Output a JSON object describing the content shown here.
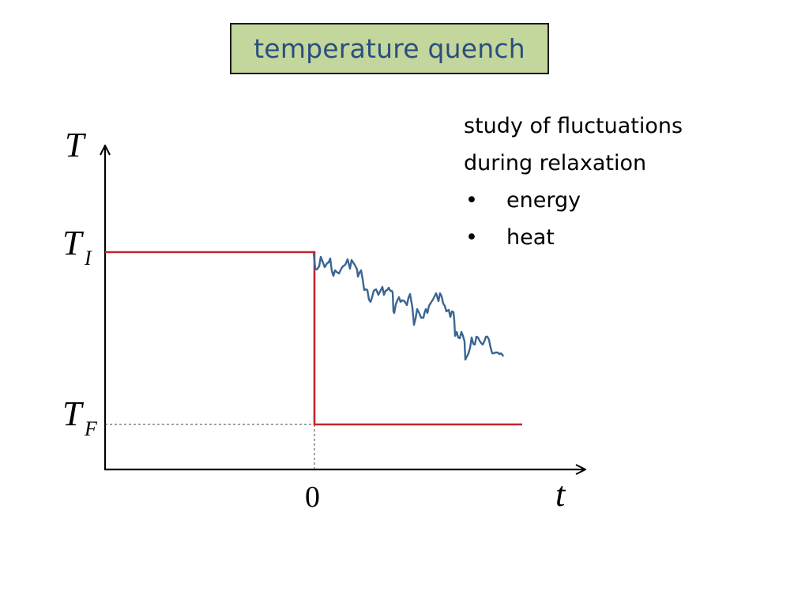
{
  "title": "temperature quench",
  "notes": {
    "line1": "study of fluctuations",
    "line2": "during relaxation",
    "bullets": [
      "energy",
      "heat"
    ],
    "bullet_char": "•"
  },
  "axes": {
    "y_symbol": "T",
    "x_symbol": "t",
    "x_origin_label": "0",
    "initial_level": {
      "main": "T",
      "sub": "I"
    },
    "final_level": {
      "main": "T",
      "sub": "F"
    }
  },
  "colors": {
    "title_bg": "#c3d69b",
    "title_text": "#2b4e7e",
    "protocol_line": "#c0272d",
    "fluctuation_line": "#3b6591",
    "axis": "#000000"
  }
}
